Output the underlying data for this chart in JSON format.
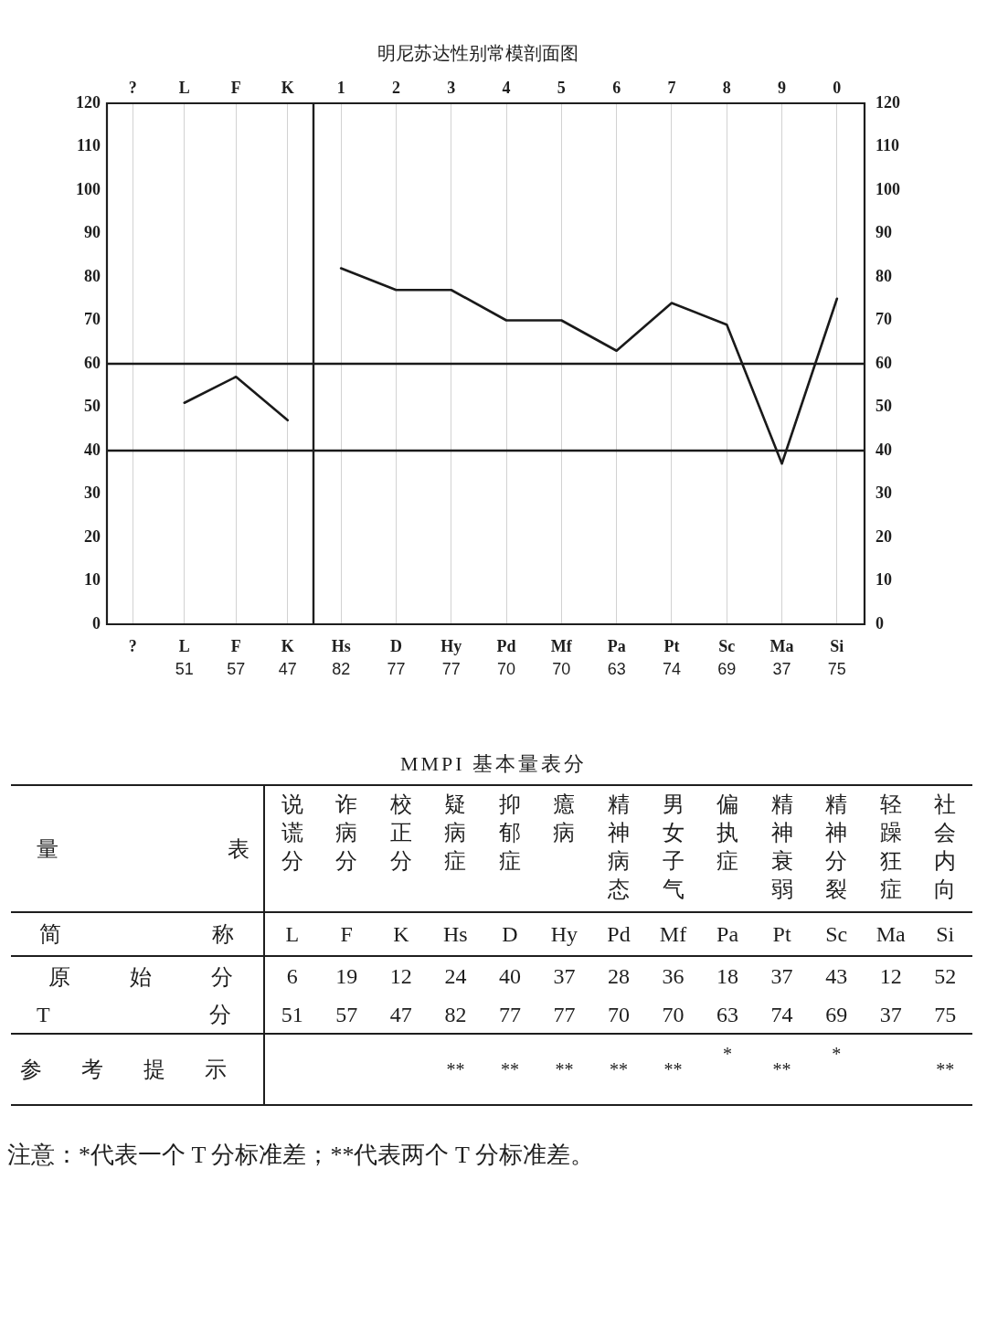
{
  "chart_data": [
    {
      "type": "line",
      "categories": [
        "?",
        "L",
        "F",
        "K"
      ],
      "series": [
        {
          "color": "#1a1a1a",
          "values": [
            null,
            51,
            57,
            47
          ]
        }
      ],
      "ylim": [
        0,
        120
      ],
      "yticks": [
        0,
        10,
        20,
        30,
        40,
        50,
        60,
        70,
        80,
        90,
        100,
        110,
        120
      ],
      "ref_lines": [
        {
          "axis": "y",
          "value": 40,
          "color": "#1a1a1a"
        },
        {
          "axis": "y",
          "value": 60,
          "color": "#1a1a1a"
        }
      ],
      "grid": "x",
      "data_labels": true,
      "marker": "none",
      "line_style": "solid",
      "annotations": [
        "?",
        "L",
        "F",
        "K"
      ]
    },
    {
      "type": "line",
      "title": "明尼苏达性别常模剖面图",
      "categories": [
        "Hs",
        "D",
        "Hy",
        "Pd",
        "Mf",
        "Pa",
        "Pt",
        "Sc",
        "Ma",
        "Si"
      ],
      "series": [
        {
          "color": "#1a1a1a",
          "values": [
            82,
            77,
            77,
            70,
            70,
            63,
            74,
            69,
            37,
            75
          ]
        }
      ],
      "ylim": [
        0,
        120
      ],
      "yticks": [
        0,
        10,
        20,
        30,
        40,
        50,
        60,
        70,
        80,
        90,
        100,
        110,
        120
      ],
      "ref_lines": [
        {
          "axis": "y",
          "value": 40,
          "color": "#1a1a1a"
        },
        {
          "axis": "y",
          "value": 60,
          "color": "#1a1a1a"
        }
      ],
      "grid": "x",
      "data_labels": true,
      "marker": "none",
      "line_style": "solid",
      "annotations": [
        "1",
        "2",
        "3",
        "4",
        "5",
        "6",
        "7",
        "8",
        "9",
        "0"
      ]
    },
    {
      "type": "other",
      "title": "MMPI 基本量表分",
      "xlabel": "量表",
      "categories": [
        "说谎分",
        "诈病分",
        "校正分",
        "疑病症",
        "抑郁症",
        "癔病",
        "精神病态",
        "男女子气",
        "偏执症",
        "精神衰弱",
        "精神分裂",
        "轻躁狂症",
        "社会内向"
      ],
      "data_labels": true,
      "series": [
        {
          "name": "简称",
          "values": [
            null,
            null,
            null,
            null,
            null,
            null,
            null,
            null,
            null,
            null,
            null,
            null,
            null
          ],
          "value_labels": [
            "L",
            "F",
            "K",
            "Hs",
            "D",
            "Hy",
            "Pd",
            "Mf",
            "Pa",
            "Pt",
            "Sc",
            "Ma",
            "Si"
          ]
        },
        {
          "name": "原始分",
          "values": [
            6,
            19,
            12,
            24,
            40,
            37,
            28,
            36,
            18,
            37,
            43,
            12,
            52
          ]
        },
        {
          "name": "T 分",
          "values": [
            51,
            57,
            47,
            82,
            77,
            77,
            70,
            70,
            63,
            74,
            69,
            37,
            75
          ]
        },
        {
          "name": "参考提示",
          "values": [
            null,
            null,
            null,
            null,
            null,
            null,
            null,
            null,
            null,
            null,
            null,
            null,
            null
          ],
          "value_labels": [
            null,
            null,
            null,
            "**",
            "**",
            "**",
            "**",
            "**",
            "*",
            "**",
            "*",
            null,
            "**"
          ]
        }
      ],
      "annotations": [
        "注意：*代表一个 T 分标准差；**代表两个 T 分标准差。"
      ]
    }
  ]
}
